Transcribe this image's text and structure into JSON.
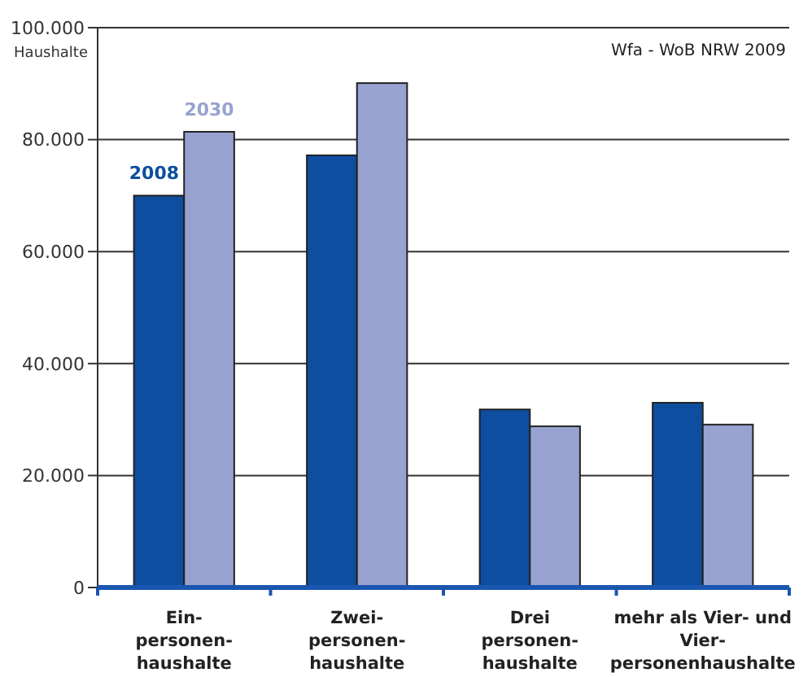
{
  "chart_data": {
    "type": "bar",
    "ylabel": "Haushalte",
    "annotations": [
      "Wfa - WoB NRW 2009"
    ],
    "categories": [
      "Ein-\npersonen-\nhaushalte",
      "Zwei-\npersonen-\nhaushalte",
      "Drei\npersonen-\nhaushalte",
      "mehr als Vier- und\nVier-\npersonenhaushalte"
    ],
    "series": [
      {
        "name": "2008",
        "color": "#0d4ea1",
        "values": [
          70000,
          77200,
          31800,
          33000
        ]
      },
      {
        "name": "2030",
        "color": "#98a2d0",
        "values": [
          81400,
          90100,
          28800,
          29100
        ]
      }
    ],
    "ylim": [
      0,
      100000
    ],
    "yticks": [
      {
        "value": 0,
        "label": "0"
      },
      {
        "value": 20000,
        "label": "20.000"
      },
      {
        "value": 40000,
        "label": "40.000"
      },
      {
        "value": 60000,
        "label": "60.000"
      },
      {
        "value": 80000,
        "label": "80.000"
      },
      {
        "value": 100000,
        "label": "100.000"
      }
    ],
    "grid": "y"
  }
}
